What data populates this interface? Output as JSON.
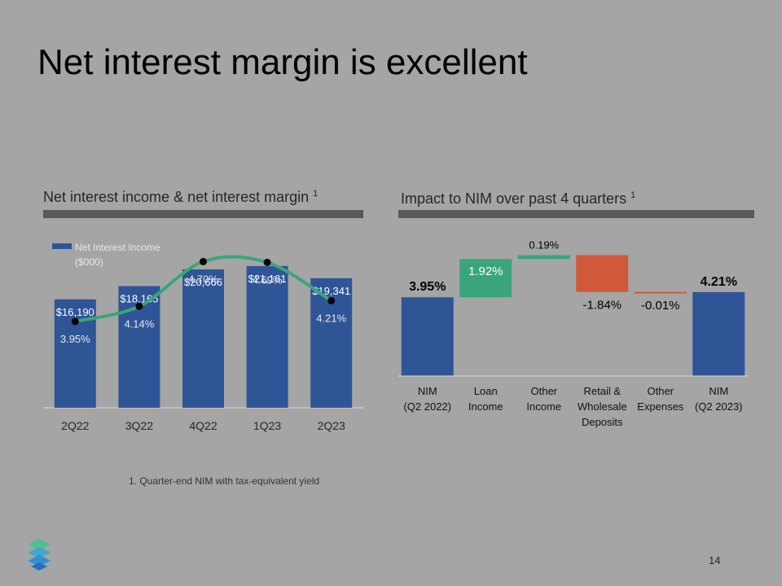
{
  "slide": {
    "title": "Net interest margin is excellent",
    "footnote": "1.  Quarter-end NIM with tax-equivalent yield",
    "page_number": "14"
  },
  "left_panel": {
    "title": "Net interest income & net interest margin",
    "superscript": "1"
  },
  "right_panel": {
    "title": "Impact to NIM over past 4 quarters",
    "superscript": "1"
  },
  "chart_data": [
    {
      "type": "bar",
      "categories": [
        "2Q22",
        "3Q22",
        "4Q22",
        "1Q23",
        "2Q23"
      ],
      "series": [
        {
          "name": "Net Interest Income ($000)",
          "values": [
            16190,
            18165,
            20666,
            21161,
            19341
          ],
          "labels": [
            "$16,190",
            "$18,165",
            "$20,666",
            "$21,161",
            "$19,341"
          ],
          "color": "#2f5597"
        },
        {
          "type": "line",
          "values": [
            3.95,
            4.14,
            4.7,
            4.69,
            4.21
          ],
          "labels": [
            "3.95%",
            "4.14%",
            "4.70%",
            "4.69%",
            "4.21%"
          ],
          "color": "#3aa57a",
          "marker_color": "#000000"
        }
      ],
      "legend": {
        "lines": [
          "Net Interest Income",
          "($000)"
        ],
        "placement": "top-left"
      },
      "ylim_bar": [
        0,
        22000
      ],
      "grid": false
    },
    {
      "type": "bar",
      "subtype": "waterfall",
      "categories": [
        [
          "NIM",
          "(Q2 2022)"
        ],
        [
          "Loan",
          "Income"
        ],
        [
          "Other",
          "Income"
        ],
        [
          "Retail &",
          "Wholesale",
          "Deposits"
        ],
        [
          "Other",
          "Expenses"
        ],
        [
          "NIM",
          "(Q2 2023)"
        ]
      ],
      "steps": [
        {
          "kind": "total",
          "value": 3.95,
          "label": "3.95%",
          "color": "#2f5597"
        },
        {
          "kind": "delta",
          "value": 1.92,
          "label": "1.92%",
          "color": "#3aa57a"
        },
        {
          "kind": "delta",
          "value": 0.19,
          "label": "0.19%",
          "color": "#3aa57a"
        },
        {
          "kind": "delta",
          "value": -1.84,
          "label": "-1.84%",
          "color": "#d0593a"
        },
        {
          "kind": "delta",
          "value": -0.01,
          "label": "-0.01%",
          "color": "#d0593a"
        },
        {
          "kind": "total",
          "value": 4.21,
          "label": "4.21%",
          "color": "#2f5597"
        }
      ],
      "grid": false
    }
  ]
}
